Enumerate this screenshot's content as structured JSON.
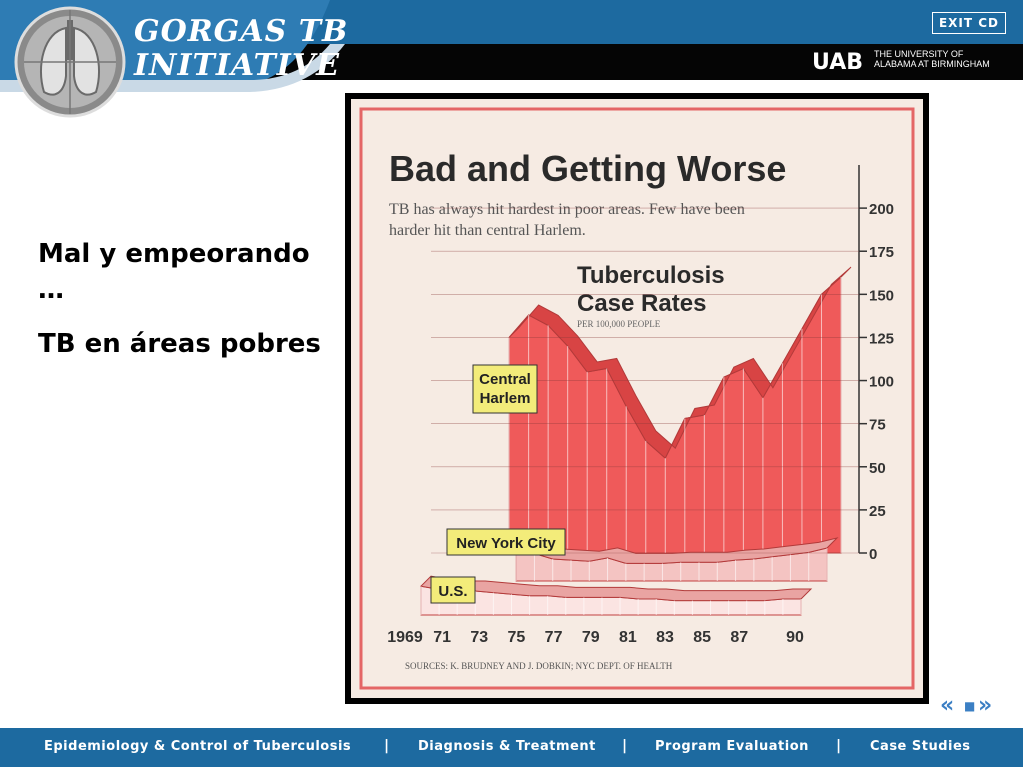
{
  "header": {
    "title_line1": "GORGAS TB",
    "title_line2": "INITIATIVE",
    "exit_label": "EXIT CD",
    "uab_logo_text": "UAB",
    "uab_line1": "THE UNIVERSITY OF",
    "uab_line2": "ALABAMA AT BIRMINGHAM",
    "colors": {
      "band": "#1d6aa0",
      "dark_band": "#050505"
    }
  },
  "side_text": {
    "heading": "Mal y empeorando …",
    "subheading": "TB en áreas pobres"
  },
  "nav": {
    "prev": "«",
    "home": "■",
    "next": "»"
  },
  "footer": {
    "items": [
      "Epidemiology & Control of Tuberculosis",
      "Diagnosis & Treatment",
      "Program Evaluation",
      "Case Studies"
    ],
    "separator": "|"
  },
  "chart_data": {
    "type": "area",
    "title": "Bad and Getting Worse",
    "subtitle": "TB has always hit hardest in poor areas. Few have been harder hit than central Harlem.",
    "chart_label_line1": "Tuberculosis",
    "chart_label_line2": "Case Rates",
    "unit_label": "PER 100,000 PEOPLE",
    "source": "SOURCES: K. BRUDNEY AND J. DOBKIN; NYC DEPT. OF HEALTH",
    "x": [
      1969,
      1970,
      1971,
      1972,
      1973,
      1974,
      1975,
      1976,
      1977,
      1978,
      1979,
      1980,
      1981,
      1982,
      1983,
      1984,
      1985,
      1986,
      1987,
      1988,
      1989,
      1990
    ],
    "x_tick_labels": [
      "1969",
      "71",
      "73",
      "75",
      "77",
      "79",
      "81",
      "83",
      "85",
      "87",
      "90"
    ],
    "y_ticks": [
      0,
      25,
      50,
      75,
      100,
      125,
      150,
      175,
      200
    ],
    "ylim": [
      0,
      225
    ],
    "series": [
      {
        "name": "Central Harlem",
        "color": "#ef5a5a",
        "values": [
          null,
          null,
          null,
          null,
          125,
          138,
          132,
          120,
          105,
          107,
          85,
          65,
          55,
          78,
          80,
          102,
          107,
          90,
          110,
          130,
          150,
          160
        ]
      },
      {
        "name": "New York City",
        "color": "#f4c4c2",
        "values": [
          null,
          null,
          null,
          null,
          24,
          25,
          20,
          19,
          18,
          21,
          16,
          16,
          16,
          17,
          17,
          17,
          19,
          20,
          22,
          24,
          26,
          30
        ]
      },
      {
        "name": "U.S.",
        "color": "#fbe4e2",
        "values": [
          18,
          16,
          15,
          15,
          14,
          13,
          12,
          12,
          11,
          11,
          11,
          11,
          10,
          10,
          9,
          9,
          9,
          9,
          9,
          9,
          10,
          10
        ]
      }
    ]
  }
}
